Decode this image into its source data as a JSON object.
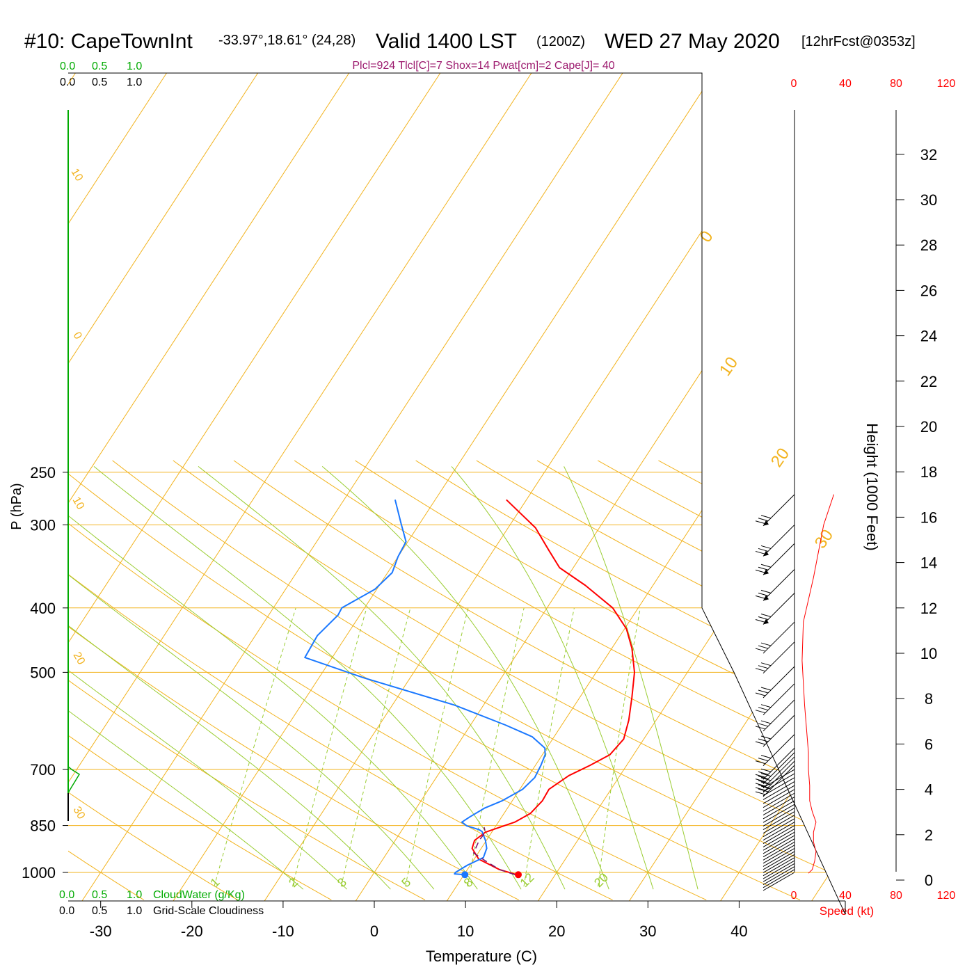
{
  "header": {
    "station": "#10: CapeTownInt",
    "coords": "-33.97°,18.61° (24,28)",
    "valid": "Valid 1400 LST",
    "utc": "(1200Z)",
    "date": "WED 27 May 2020",
    "forecast": "[12hrFcst@0353z]",
    "indices": "Plcl=924 Tlcl[C]=7 Shox=14 Pwat[cm]=2 Cape[J]= 40"
  },
  "colors": {
    "isotherm": "#f2b31e",
    "dry_adiabat": "#f2b31e",
    "moist_adiabat": "#9acd32",
    "mixing_ratio": "#9acd32",
    "temperature": "#ff0000",
    "dewpoint": "#1a78ff",
    "parcel": "#7b1a6e",
    "cloud_water": "#00aa00",
    "indices": "#9c1a6e",
    "speed": "#ff0000"
  },
  "labels": {
    "cloud_top_scale": [
      "0.0",
      "0.5",
      "1.0"
    ],
    "cloudiness_top_scale": [
      "0.0",
      "0.5",
      "1.0"
    ],
    "cloud_water": "CloudWater (g/Kg)",
    "cloudiness": "Grid-Scale Cloudiness",
    "speed_ticks": [
      "0",
      "40",
      "80",
      "120"
    ],
    "speed_axis": "Speed (kt)"
  },
  "chart_data": {
    "type": "line",
    "chart_kind": "skew-T log-P",
    "xlabel": "Temperature (C)",
    "ylabel": "P (hPa)",
    "y2label": "Height (1000 Feet)",
    "x_ticks": [
      -30,
      -20,
      -10,
      0,
      10,
      20,
      30,
      40
    ],
    "p_ticks": [
      250,
      300,
      400,
      500,
      700,
      850,
      1000
    ],
    "height_ticks": [
      0,
      2,
      4,
      6,
      8,
      10,
      12,
      14,
      16,
      18,
      20,
      22,
      24,
      26,
      28,
      30,
      32
    ],
    "y_scale": "log",
    "isotherm_labels": [
      "30",
      "20",
      "10",
      "0",
      "10",
      "20",
      "30",
      "0",
      "10",
      "20",
      "30"
    ],
    "mixing_ratio_labels": [
      "1",
      "2",
      "3",
      "5",
      "8",
      "12",
      "20"
    ],
    "mixing_ratio_values": [
      1,
      2,
      3,
      5,
      8,
      12,
      20
    ],
    "series": [
      {
        "name": "temperature",
        "points": [
          [
            15.8,
            1008
          ],
          [
            13.5,
            990
          ],
          [
            10.5,
            955
          ],
          [
            9.0,
            920
          ],
          [
            8.7,
            895
          ],
          [
            9.3,
            870
          ],
          [
            11.8,
            840
          ],
          [
            12.9,
            815
          ],
          [
            13.3,
            780
          ],
          [
            13.2,
            750
          ],
          [
            14.4,
            715
          ],
          [
            16.0,
            690
          ],
          [
            17.4,
            665
          ],
          [
            17.8,
            630
          ],
          [
            17.0,
            590
          ],
          [
            15.7,
            545
          ],
          [
            14.2,
            500
          ],
          [
            12.2,
            460
          ],
          [
            10.2,
            430
          ],
          [
            7.2,
            400
          ],
          [
            2.6,
            370
          ],
          [
            -1.5,
            348
          ],
          [
            -4.0,
            327
          ],
          [
            -7.0,
            303
          ],
          [
            -12.2,
            275
          ]
        ]
      },
      {
        "name": "dewpoint",
        "points": [
          [
            10.1,
            1008
          ],
          [
            8.9,
            1005
          ],
          [
            8.9,
            1000
          ],
          [
            9.7,
            975
          ],
          [
            10.9,
            950
          ],
          [
            10.6,
            920
          ],
          [
            9.9,
            895
          ],
          [
            8.9,
            868
          ],
          [
            8.4,
            862
          ],
          [
            6.8,
            851
          ],
          [
            6.0,
            840
          ],
          [
            6.5,
            825
          ],
          [
            7.5,
            800
          ],
          [
            8.9,
            780
          ],
          [
            10.3,
            750
          ],
          [
            10.8,
            720
          ],
          [
            10.6,
            690
          ],
          [
            10.3,
            665
          ],
          [
            9.8,
            650
          ],
          [
            7.6,
            625
          ],
          [
            3.8,
            600
          ],
          [
            -3.2,
            560
          ],
          [
            -15.0,
            510
          ],
          [
            -23.0,
            475
          ],
          [
            -23.2,
            440
          ],
          [
            -22.4,
            410
          ],
          [
            -22.5,
            400
          ],
          [
            -20.2,
            375
          ],
          [
            -19.5,
            354
          ],
          [
            -20.0,
            335
          ],
          [
            -20.2,
            318
          ],
          [
            -22.1,
            298
          ],
          [
            -24.4,
            275
          ]
        ]
      },
      {
        "name": "parcel",
        "points": [
          [
            15.6,
            1008
          ],
          [
            13.5,
            990
          ],
          [
            11.3,
            960
          ],
          [
            9.5,
            935
          ],
          [
            9.2,
            895
          ],
          [
            9.3,
            870
          ],
          [
            8.8,
            855
          ]
        ]
      }
    ],
    "speed_profile_kt": [
      [
        0,
        1003
      ],
      [
        3,
        990
      ],
      [
        5,
        960
      ],
      [
        6,
        930
      ],
      [
        4,
        900
      ],
      [
        4,
        870
      ],
      [
        6,
        840
      ],
      [
        3,
        810
      ],
      [
        1,
        780
      ],
      [
        1,
        740
      ],
      [
        0,
        700
      ],
      [
        0,
        660
      ],
      [
        -3,
        560
      ],
      [
        -5,
        480
      ],
      [
        -4,
        420
      ],
      [
        4,
        360
      ],
      [
        12,
        300
      ],
      [
        20,
        270
      ]
    ],
    "speed_axis_range_kt": [
      0,
      120
    ],
    "wind_levels_hpa": [
      1000,
      990,
      980,
      970,
      960,
      950,
      940,
      930,
      920,
      910,
      900,
      890,
      880,
      870,
      860,
      850,
      840,
      830,
      820,
      810,
      800,
      790,
      780,
      770,
      760,
      750,
      740,
      730,
      720,
      710,
      700,
      690,
      680,
      670,
      660,
      650,
      620,
      580,
      550,
      520,
      490,
      450,
      420,
      380,
      350,
      320,
      300,
      270
    ]
  }
}
